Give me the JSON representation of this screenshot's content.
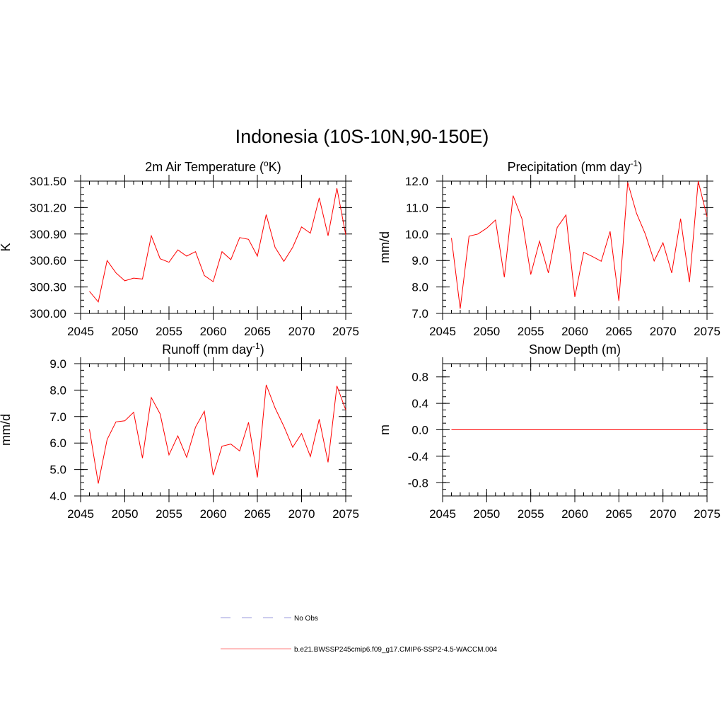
{
  "page": {
    "title": "Indonesia (10S-10N,90-150E)"
  },
  "colors": {
    "model_line": "#ff0000",
    "obs_line": "#9999dd"
  },
  "legend": {
    "obs_label": "No Obs",
    "model_label": "b.e21.BWSSP245cmip6.f09_g17.CMIP6-SSP2-4.5-WACCM.004"
  },
  "chart_data": [
    {
      "type": "line",
      "title": "2m Air Temperature (°K)",
      "title_parts": {
        "pre": "2m Air Temperature (",
        "sup": "o",
        "post": "K)"
      },
      "ylabel": "K",
      "xlim": [
        2045,
        2075
      ],
      "ylim": [
        300.0,
        301.5
      ],
      "xticks": [
        2045,
        2050,
        2055,
        2060,
        2065,
        2070,
        2075
      ],
      "xtick_labels": [
        "2045",
        "2050",
        "2055",
        "2060",
        "2065",
        "2070",
        "2075"
      ],
      "yticks": [
        300.0,
        300.3,
        300.6,
        300.9,
        301.2,
        301.5
      ],
      "ytick_labels": [
        "300.00",
        "300.30",
        "300.60",
        "300.90",
        "301.20",
        "301.50"
      ],
      "y_minor_step": 0.075,
      "grid": false,
      "series": [
        {
          "x": [
            2046,
            2047,
            2048,
            2049,
            2050,
            2051,
            2052,
            2053,
            2054,
            2055,
            2056,
            2057,
            2058,
            2059,
            2060,
            2061,
            2062,
            2063,
            2064,
            2065,
            2066,
            2067,
            2068,
            2069,
            2070,
            2071,
            2072,
            2073,
            2074,
            2075
          ],
          "values": [
            300.25,
            300.13,
            300.6,
            300.46,
            300.37,
            300.4,
            300.39,
            300.88,
            300.62,
            300.58,
            300.72,
            300.65,
            300.7,
            300.43,
            300.36,
            300.7,
            300.61,
            300.86,
            300.84,
            300.65,
            301.12,
            300.75,
            300.59,
            300.75,
            300.98,
            300.91,
            301.31,
            300.88,
            301.42,
            300.89
          ]
        }
      ]
    },
    {
      "type": "line",
      "title": "Precipitation (mm day-1)",
      "title_parts": {
        "pre": "Precipitation (mm day",
        "sup": "-1",
        "post": ")"
      },
      "ylabel": "mm/d",
      "xlim": [
        2045,
        2075
      ],
      "ylim": [
        7.0,
        12.0
      ],
      "xticks": [
        2045,
        2050,
        2055,
        2060,
        2065,
        2070,
        2075
      ],
      "xtick_labels": [
        "2045",
        "2050",
        "2055",
        "2060",
        "2065",
        "2070",
        "2075"
      ],
      "yticks": [
        7.0,
        8.0,
        9.0,
        10.0,
        11.0,
        12.0
      ],
      "ytick_labels": [
        "7.0",
        "8.0",
        "9.0",
        "10.0",
        "11.0",
        "12.0"
      ],
      "y_minor_step": 0.25,
      "grid": false,
      "series": [
        {
          "x": [
            2046,
            2047,
            2048,
            2049,
            2050,
            2051,
            2052,
            2053,
            2054,
            2055,
            2056,
            2057,
            2058,
            2059,
            2060,
            2061,
            2062,
            2063,
            2064,
            2065,
            2066,
            2067,
            2068,
            2069,
            2070,
            2071,
            2072,
            2073,
            2074,
            2075
          ],
          "values": [
            9.85,
            7.18,
            9.92,
            10.0,
            10.22,
            10.53,
            8.37,
            11.45,
            10.58,
            8.47,
            9.73,
            8.53,
            10.25,
            10.72,
            7.62,
            9.31,
            9.15,
            8.97,
            10.1,
            7.47,
            11.95,
            10.78,
            10.0,
            8.98,
            9.67,
            8.53,
            10.58,
            8.18,
            12.0,
            10.65
          ]
        }
      ]
    },
    {
      "type": "line",
      "title": "Runoff (mm day-1)",
      "title_parts": {
        "pre": "Runoff (mm day",
        "sup": "-1",
        "post": ")"
      },
      "ylabel": "mm/d",
      "xlim": [
        2045,
        2075
      ],
      "ylim": [
        4.0,
        9.0
      ],
      "xticks": [
        2045,
        2050,
        2055,
        2060,
        2065,
        2070,
        2075
      ],
      "xtick_labels": [
        "2045",
        "2050",
        "2055",
        "2060",
        "2065",
        "2070",
        "2075"
      ],
      "yticks": [
        4.0,
        5.0,
        6.0,
        7.0,
        8.0,
        9.0
      ],
      "ytick_labels": [
        "4.0",
        "5.0",
        "6.0",
        "7.0",
        "8.0",
        "9.0"
      ],
      "y_minor_step": 0.25,
      "grid": false,
      "series": [
        {
          "x": [
            2046,
            2047,
            2048,
            2049,
            2050,
            2051,
            2052,
            2053,
            2054,
            2055,
            2056,
            2057,
            2058,
            2059,
            2060,
            2061,
            2062,
            2063,
            2064,
            2065,
            2066,
            2067,
            2068,
            2069,
            2070,
            2071,
            2072,
            2073,
            2074,
            2075
          ],
          "values": [
            6.52,
            4.47,
            6.13,
            6.8,
            6.84,
            7.16,
            5.43,
            7.72,
            7.1,
            5.55,
            6.27,
            5.46,
            6.6,
            7.2,
            4.79,
            5.88,
            5.96,
            5.7,
            6.78,
            4.7,
            8.2,
            7.33,
            6.63,
            5.84,
            6.36,
            5.49,
            6.9,
            5.27,
            8.16,
            7.25
          ]
        }
      ]
    },
    {
      "type": "line",
      "title": "Snow Depth (m)",
      "title_parts": {
        "pre": "Snow Depth (m)",
        "sup": "",
        "post": ""
      },
      "ylabel": "m",
      "xlim": [
        2045,
        2075
      ],
      "ylim": [
        -1.0,
        1.0
      ],
      "xticks": [
        2045,
        2050,
        2055,
        2060,
        2065,
        2070,
        2075
      ],
      "xtick_labels": [
        "2045",
        "2050",
        "2055",
        "2060",
        "2065",
        "2070",
        "2075"
      ],
      "yticks": [
        -0.8,
        -0.4,
        0.0,
        0.4,
        0.8
      ],
      "ytick_labels": [
        "-0.8",
        "-0.4",
        "0.0",
        "0.4",
        "0.8"
      ],
      "y_minor_step": 0.1,
      "grid": false,
      "series": [
        {
          "x": [
            2046,
            2047,
            2048,
            2049,
            2050,
            2051,
            2052,
            2053,
            2054,
            2055,
            2056,
            2057,
            2058,
            2059,
            2060,
            2061,
            2062,
            2063,
            2064,
            2065,
            2066,
            2067,
            2068,
            2069,
            2070,
            2071,
            2072,
            2073,
            2074,
            2075
          ],
          "values": [
            0,
            0,
            0,
            0,
            0,
            0,
            0,
            0,
            0,
            0,
            0,
            0,
            0,
            0,
            0,
            0,
            0,
            0,
            0,
            0,
            0,
            0,
            0,
            0,
            0,
            0,
            0,
            0,
            0,
            0
          ]
        }
      ]
    }
  ]
}
